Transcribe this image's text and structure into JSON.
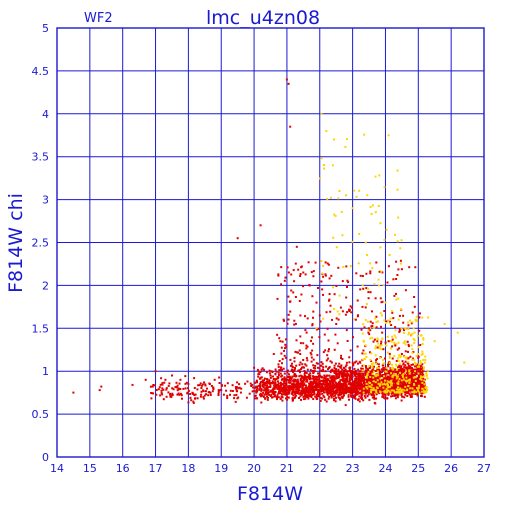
{
  "chart_data": {
    "type": "scatter",
    "title": "lmc_u4zn08",
    "panel_label": "WF2",
    "xlabel": "F814W",
    "ylabel": "F814W chi",
    "xlim": [
      14,
      27
    ],
    "ylim": [
      0,
      5
    ],
    "x_ticks": [
      "14",
      "15",
      "16",
      "17",
      "18",
      "19",
      "20",
      "21",
      "22",
      "23",
      "24",
      "25",
      "26",
      "27"
    ],
    "y_ticks": [
      "0",
      "0.5",
      "1",
      "1.5",
      "2",
      "2.5",
      "3",
      "3.5",
      "4",
      "4.5",
      "5"
    ],
    "grid": true,
    "colors": {
      "axis": "#1a1ad0",
      "grid": "#1a1ad0",
      "series_red": "#e00000",
      "series_yellow": "#ffd400"
    },
    "series": [
      {
        "color": "#e00000",
        "points": [
          [
            14.5,
            0.75
          ],
          [
            15.3,
            0.78
          ],
          [
            15.35,
            0.82
          ],
          [
            16.3,
            0.84
          ],
          [
            16.7,
            0.9
          ],
          [
            17.0,
            1.0
          ],
          [
            17.3,
            0.9
          ],
          [
            17.5,
            0.95
          ],
          [
            17.7,
            0.8
          ],
          [
            17.8,
            0.72
          ],
          [
            18.0,
            0.85
          ],
          [
            18.2,
            0.68
          ],
          [
            18.4,
            0.76
          ],
          [
            18.6,
            0.72
          ],
          [
            18.8,
            0.9
          ],
          [
            19.0,
            0.78
          ],
          [
            19.2,
            0.86
          ],
          [
            19.4,
            0.72
          ],
          [
            19.6,
            0.75
          ],
          [
            19.8,
            0.88
          ],
          [
            20.0,
            1.04
          ],
          [
            20.1,
            0.8
          ],
          [
            20.3,
            0.7
          ],
          [
            20.5,
            0.95
          ],
          [
            20.6,
            1.2
          ],
          [
            20.8,
            1.35
          ],
          [
            21.0,
            4.4
          ],
          [
            21.05,
            4.35
          ],
          [
            21.1,
            3.85
          ],
          [
            21.3,
            2.45
          ],
          [
            21.5,
            2.15
          ],
          [
            21.7,
            2.0
          ],
          [
            21.9,
            1.8
          ],
          [
            22.0,
            1.65
          ],
          [
            22.1,
            2.1
          ],
          [
            22.3,
            1.9
          ],
          [
            22.5,
            1.55
          ],
          [
            22.7,
            2.05
          ],
          [
            22.9,
            1.7
          ],
          [
            23.1,
            1.6
          ],
          [
            23.3,
            1.75
          ],
          [
            23.5,
            1.5
          ],
          [
            23.7,
            1.85
          ],
          [
            23.9,
            1.45
          ],
          [
            24.1,
            1.35
          ],
          [
            24.3,
            1.3
          ],
          [
            24.5,
            1.2
          ],
          [
            24.7,
            1.15
          ],
          [
            19.5,
            2.55
          ],
          [
            20.2,
            2.7
          ],
          [
            20.9,
            1.6
          ],
          [
            21.6,
            1.45
          ]
        ]
      },
      {
        "color": "#ffd400",
        "points": [
          [
            21.9,
            1.5
          ],
          [
            22.05,
            4.0
          ],
          [
            22.2,
            3.8
          ],
          [
            22.4,
            3.4
          ],
          [
            22.6,
            3.1
          ],
          [
            22.8,
            3.05
          ],
          [
            23.0,
            2.9
          ],
          [
            23.2,
            2.6
          ],
          [
            23.4,
            2.5
          ],
          [
            23.6,
            2.2
          ],
          [
            23.8,
            2.0
          ],
          [
            24.0,
            1.8
          ],
          [
            24.2,
            1.7
          ],
          [
            24.4,
            1.6
          ],
          [
            24.6,
            1.5
          ],
          [
            24.8,
            1.3
          ],
          [
            25.0,
            1.2
          ],
          [
            25.2,
            1.1
          ],
          [
            25.5,
            1.35
          ],
          [
            25.8,
            1.55
          ],
          [
            26.2,
            1.45
          ],
          [
            26.4,
            1.1
          ],
          [
            25.1,
            0.9
          ],
          [
            24.9,
            1.0
          ]
        ]
      }
    ]
  }
}
